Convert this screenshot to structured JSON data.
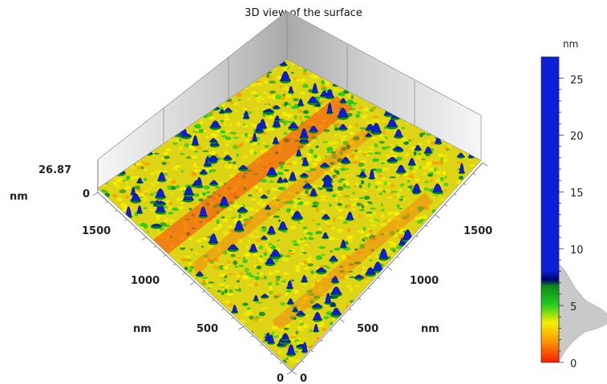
{
  "title": "3D view of the surface",
  "z_axis": {
    "max_label": "26.87",
    "min_label": "0",
    "unit": "nm"
  },
  "left_axis": {
    "ticks": [
      "1500",
      "1000",
      "500",
      "0"
    ],
    "unit": "nm"
  },
  "right_axis": {
    "ticks": [
      "0",
      "500",
      "1000",
      "1500"
    ],
    "unit": "nm"
  },
  "colorbar": {
    "unit": "nm",
    "min": 0,
    "max": 26.87,
    "ticks": [
      "0",
      "5",
      "10",
      "15",
      "20",
      "25"
    ],
    "colors": {
      "red": "#ff1a00",
      "orange": "#ff9a00",
      "yellow": "#f4f000",
      "green": "#1fcc1f",
      "dark-green": "#0a8a1a",
      "blue": "#0a1fd8",
      "navy": "#000070"
    }
  }
}
